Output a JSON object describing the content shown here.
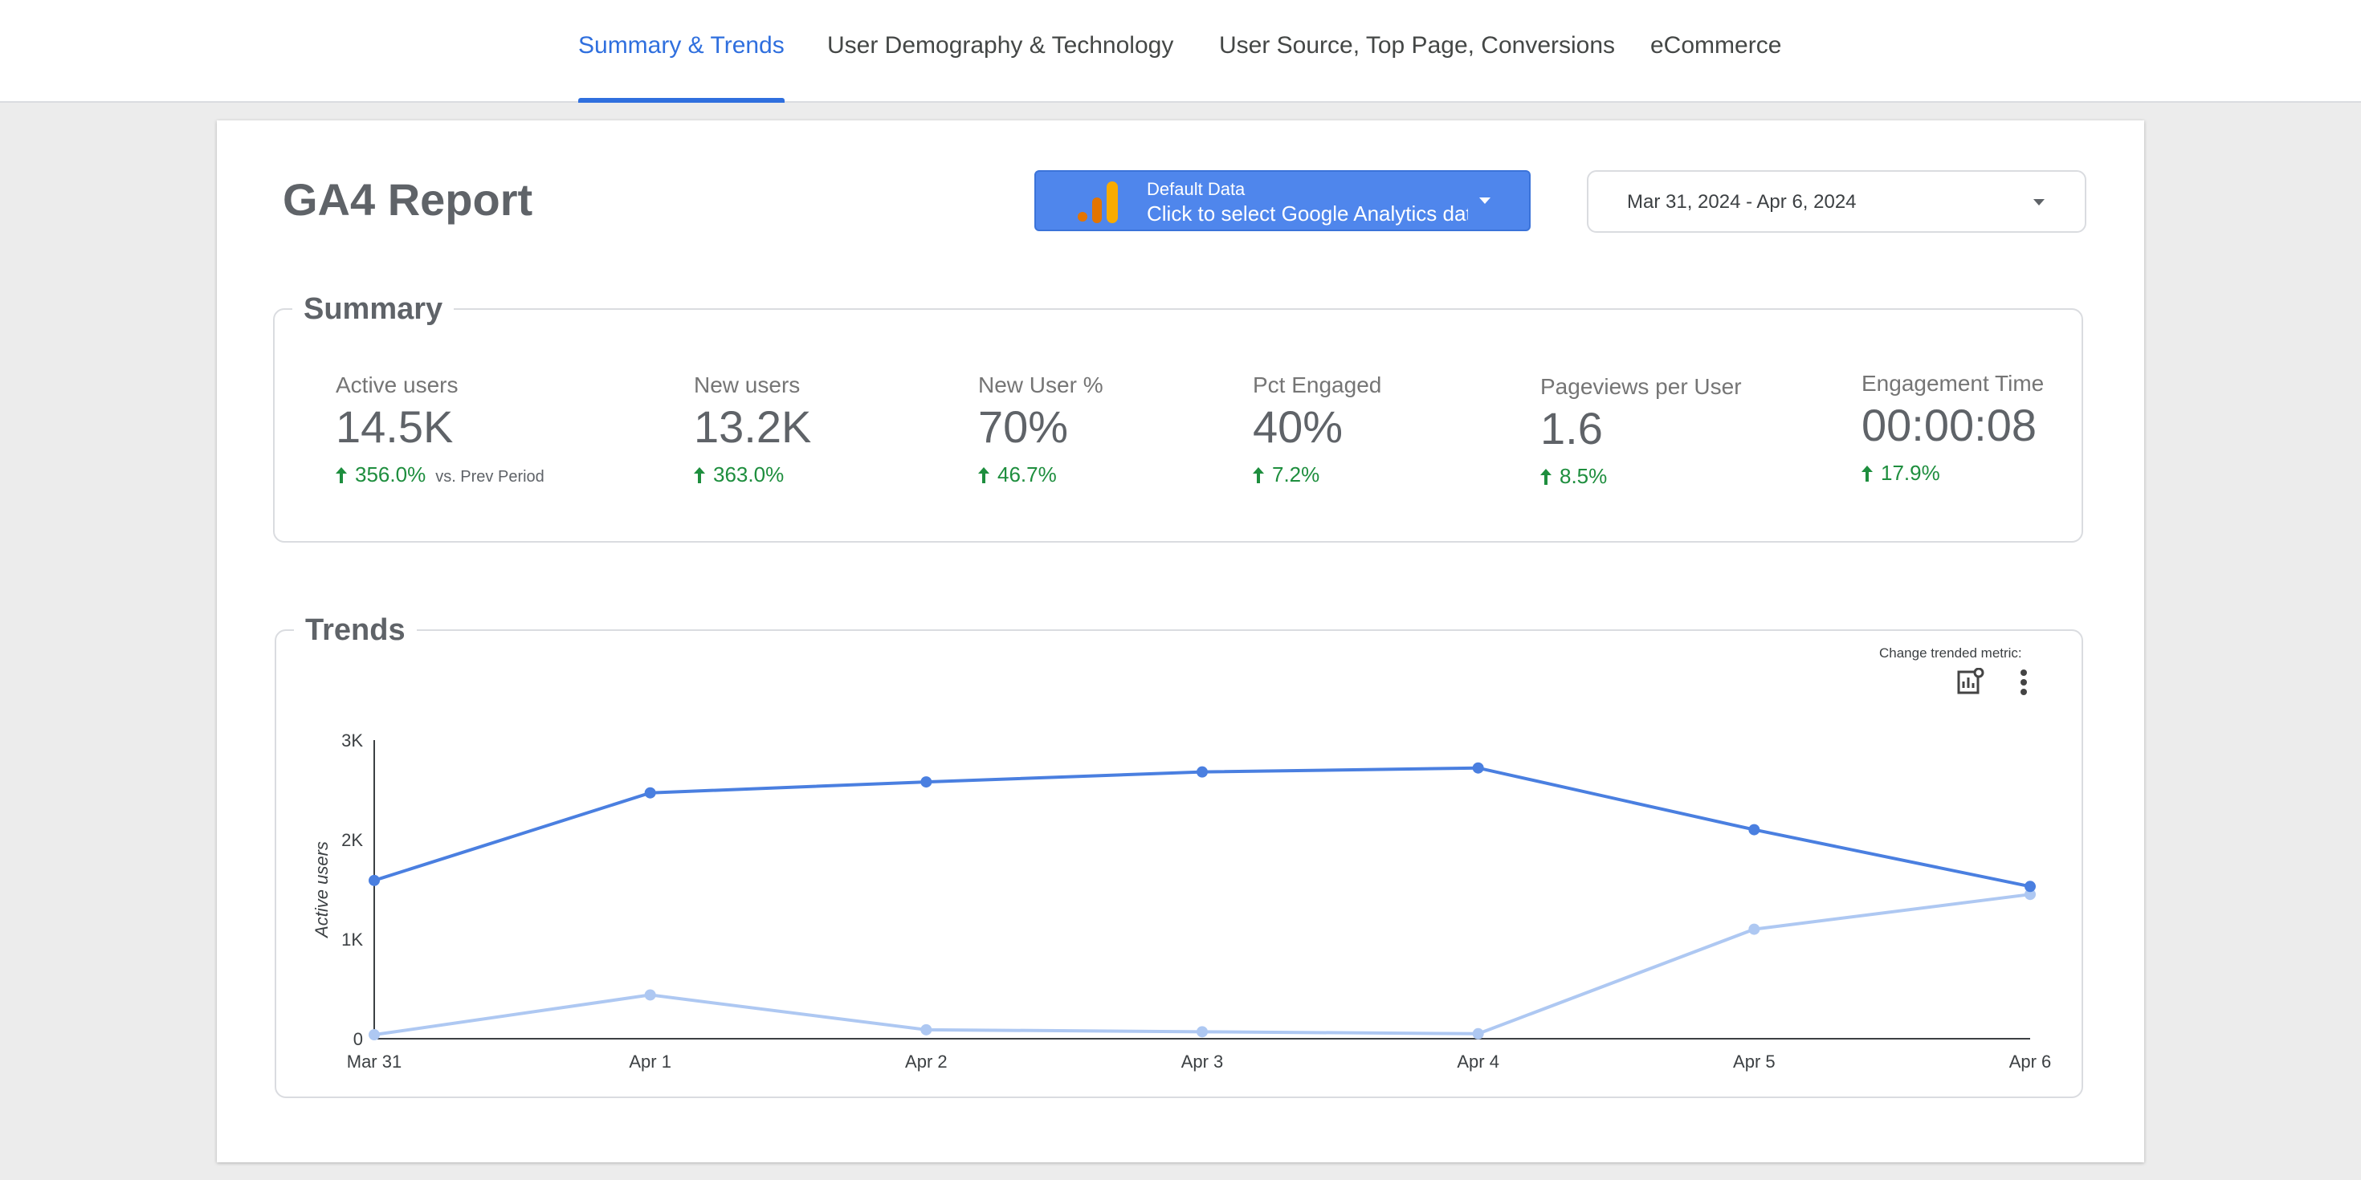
{
  "nav": {
    "tabs": [
      {
        "label": "Summary & Trends",
        "active": true
      },
      {
        "label": "User Demography & Technology",
        "active": false
      },
      {
        "label": "User Source, Top Page, Conversions",
        "active": false
      },
      {
        "label": "eCommerce",
        "active": false
      }
    ]
  },
  "report": {
    "title": "GA4 Report",
    "data_selector": {
      "small_label": "Default Data",
      "big_label": "Click to select Google Analytics data"
    },
    "date_range": "Mar 31, 2024 - Apr 6, 2024"
  },
  "summary": {
    "title": "Summary",
    "vs_label": "vs. Prev Period",
    "metrics": [
      {
        "label": "Active users",
        "value": "14.5K",
        "delta": "356.0%"
      },
      {
        "label": "New users",
        "value": "13.2K",
        "delta": "363.0%"
      },
      {
        "label": "New User %",
        "value": "70%",
        "delta": "46.7%"
      },
      {
        "label": "Pct Engaged",
        "value": "40%",
        "delta": "7.2%"
      },
      {
        "label": "Pageviews per User",
        "value": "1.6",
        "delta": "8.5%"
      },
      {
        "label": "Engagement Time",
        "value": "00:00:08",
        "delta": "17.9%"
      }
    ]
  },
  "trends": {
    "title": "Trends",
    "change_metric_label": "Change trended metric:"
  },
  "colors": {
    "accent": "#2f6fde",
    "series_current": "#4a7fe0",
    "series_previous": "#aec8f2",
    "positive": "#1e8e3e"
  },
  "chart_data": {
    "type": "line",
    "categories": [
      "Mar 31",
      "Apr 1",
      "Apr 2",
      "Apr 3",
      "Apr 4",
      "Apr 5",
      "Apr 6"
    ],
    "ylabel": "Active users",
    "ylim": [
      0,
      3000
    ],
    "yticks": [
      0,
      1000,
      2000,
      3000
    ],
    "ytick_labels": [
      "0",
      "1K",
      "2K",
      "3K"
    ],
    "grid": false,
    "series": [
      {
        "values": [
          1590,
          2470,
          2580,
          2680,
          2720,
          2100,
          1530
        ]
      },
      {
        "values": [
          40,
          440,
          90,
          70,
          50,
          1100,
          1450
        ]
      }
    ]
  }
}
